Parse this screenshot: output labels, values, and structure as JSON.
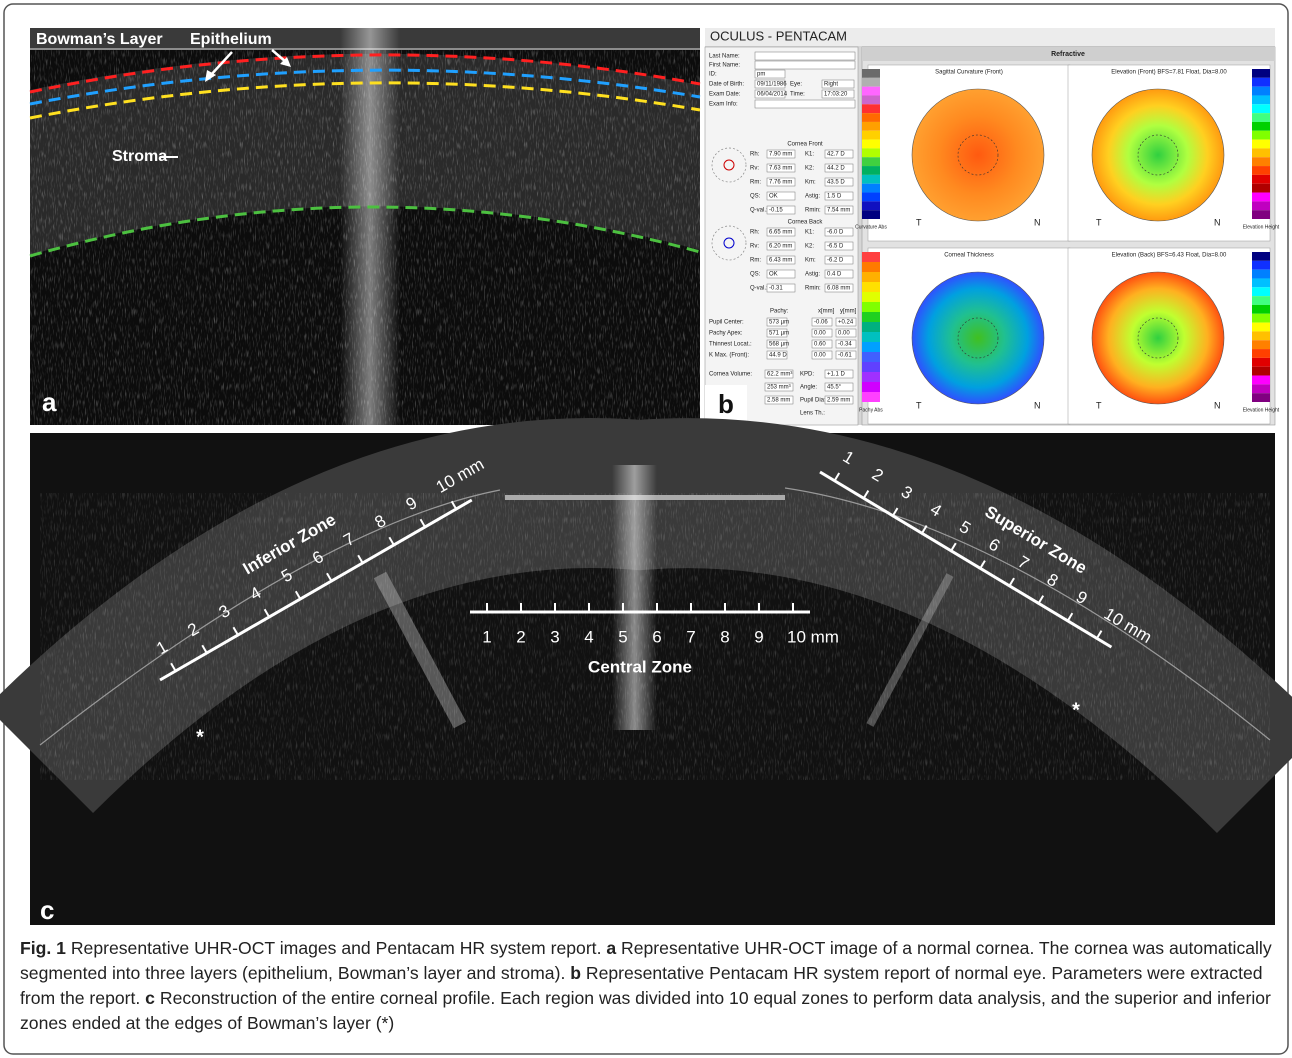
{
  "panel_a": {
    "label": "a",
    "annotations": [
      "Bowman’s Layer",
      "Epithelium",
      "Stroma"
    ]
  },
  "panel_b": {
    "label": "b",
    "header": "OCULUS - PENTACAM",
    "section": "Refractive",
    "patient": [
      {
        "label": "Last Name:"
      },
      {
        "label": "First Name:"
      },
      {
        "label": "ID:",
        "value": "pm"
      },
      {
        "label": "Date of Birth:",
        "value": "09/11/1986"
      },
      {
        "label": "Eye:",
        "value": "Right"
      },
      {
        "label": "Exam Date:",
        "value": "06/04/2014"
      },
      {
        "label": "Time:",
        "value": "17:03:20"
      },
      {
        "label": "Exam Info:"
      }
    ],
    "front": {
      "title": "Cornea Front",
      "fields": [
        {
          "label": "Rh:",
          "value": "7.90 mm"
        },
        {
          "label": "K1:",
          "value": "42.7 D"
        },
        {
          "label": "Rv:",
          "value": "7.63 mm"
        },
        {
          "label": "K2:",
          "value": "44.2 D"
        },
        {
          "label": "Rm:",
          "value": "7.76 mm"
        },
        {
          "label": "Km:",
          "value": "43.5 D"
        },
        {
          "label": "QS:",
          "value": "OK"
        },
        {
          "label": "Astig:",
          "value": "1.5 D"
        },
        {
          "label": "Q-val.:",
          "value": "-0.15"
        },
        {
          "label": "Rmin:",
          "value": "7.54 mm"
        }
      ]
    },
    "back": {
      "title": "Cornea Back",
      "fields": [
        {
          "label": "Rh:",
          "value": "6.65 mm"
        },
        {
          "label": "K1:",
          "value": "-6.0 D"
        },
        {
          "label": "Rv:",
          "value": "6.20 mm"
        },
        {
          "label": "K2:",
          "value": "-6.5 D"
        },
        {
          "label": "Rm:",
          "value": "6.43 mm"
        },
        {
          "label": "Km:",
          "value": "-6.2 D"
        },
        {
          "label": "QS:",
          "value": "OK"
        },
        {
          "label": "Astig:",
          "value": "0.4 D"
        },
        {
          "label": "Q-val.:",
          "value": "-0.31"
        },
        {
          "label": "Rmin:",
          "value": "6.08 mm"
        }
      ]
    },
    "pachy": {
      "columns": [
        "Pachy:",
        "x[mm]",
        "y[mm]"
      ],
      "rows": [
        [
          "Pupil Center:",
          "573 µm",
          "-0.06",
          "+0.24"
        ],
        [
          "Pachy Apex:",
          "571 µm",
          "0.00",
          "0.00"
        ],
        [
          "Thinnest Locat.:",
          "568 µm",
          "0.60",
          "-0.34"
        ],
        [
          "K Max. (Front):",
          "44.9 D",
          "0.00",
          "-0.61"
        ]
      ]
    },
    "other": [
      {
        "label": "Cornea Volume:",
        "value": "62.2 mm³"
      },
      {
        "label": "KPD:",
        "value": "+1.1 D"
      },
      {
        "value": "253 mm³"
      },
      {
        "label": "Angle:",
        "value": "45.5°"
      },
      {
        "value": "2.58 mm"
      },
      {
        "label": "Pupil Dia:",
        "value": "2.59 mm"
      },
      {
        "label": "Lens Th.:"
      }
    ],
    "maps": [
      {
        "title": "Sagittal Curvature (Front)",
        "footer": "Curvature Abs",
        "scale_colors": [
          "#6a6a6a",
          "#b0b0b0",
          "#ff66ff",
          "#cc66cc",
          "#ff3030",
          "#ff6a00",
          "#ffa000",
          "#ffd000",
          "#ffff00",
          "#b0ff00",
          "#40d040",
          "#00b060",
          "#00c0c0",
          "#0080ff",
          "#0040ff",
          "#1010c0",
          "#000080"
        ]
      },
      {
        "title": "Elevation (Front)  BFS=7.81 Float, Dia=8.00",
        "footer": "Elevation Height",
        "scale_colors": [
          "#000080",
          "#1030ff",
          "#0080ff",
          "#00c0ff",
          "#00ffff",
          "#40ff80",
          "#00d000",
          "#80ff00",
          "#ffff00",
          "#ffc000",
          "#ff8000",
          "#ff4000",
          "#e00000",
          "#b00000",
          "#ff00ff",
          "#c000c0",
          "#800080"
        ]
      },
      {
        "title": "Corneal Thickness",
        "footer": "Pachy Abs",
        "scale_colors": [
          "#ff4040",
          "#ff7a00",
          "#ffb000",
          "#ffe000",
          "#e0ff00",
          "#80ff00",
          "#20d020",
          "#00b080",
          "#00c0c0",
          "#00a0ff",
          "#4060ff",
          "#6040ff",
          "#a030ff",
          "#d000ff",
          "#ff40ff"
        ]
      },
      {
        "title": "Elevation (Back)  BFS=6.43 Float, Dia=8.00",
        "footer": "Elevation Height",
        "scale_colors": [
          "#000080",
          "#1030ff",
          "#0080ff",
          "#00c0ff",
          "#00ffff",
          "#40ff80",
          "#00d000",
          "#80ff00",
          "#ffff00",
          "#ffc000",
          "#ff8000",
          "#ff4000",
          "#e00000",
          "#b00000",
          "#ff00ff",
          "#c000c0",
          "#800080"
        ]
      }
    ],
    "sides": [
      "T",
      "N"
    ]
  },
  "panel_c": {
    "label": "c",
    "zones": [
      {
        "name": "Inferior Zone",
        "ticks": [
          "1",
          "2",
          "3",
          "4",
          "5",
          "6",
          "7",
          "8",
          "9",
          "10 mm"
        ]
      },
      {
        "name": "Central Zone",
        "ticks": [
          "1",
          "2",
          "3",
          "4",
          "5",
          "6",
          "7",
          "8",
          "9",
          "10 mm"
        ]
      },
      {
        "name": "Superior Zone",
        "ticks": [
          "1",
          "2",
          "3",
          "4",
          "5",
          "6",
          "7",
          "8",
          "9",
          "10 mm"
        ]
      }
    ],
    "marker": "*"
  },
  "caption": {
    "runs": [
      {
        "text": "Fig. 1",
        "bold": true
      },
      {
        "text": " Representative UHR-OCT images and Pentacam HR system report. "
      },
      {
        "text": "a",
        "bold": true
      },
      {
        "text": " Representative UHR-OCT image of a normal cornea. The cornea was automatically segmented into three layers (epithelium, Bowman’s layer and stroma). "
      },
      {
        "text": "b",
        "bold": true
      },
      {
        "text": " Representative Pentacam HR system report of normal eye. Parameters were extracted from the report. "
      },
      {
        "text": "c",
        "bold": true
      },
      {
        "text": " Reconstruction of the entire corneal profile. Each region was divided into 10 equal zones to perform data analysis, and the superior and inferior zones ended at the edges of Bowman’s layer (*)"
      }
    ]
  }
}
